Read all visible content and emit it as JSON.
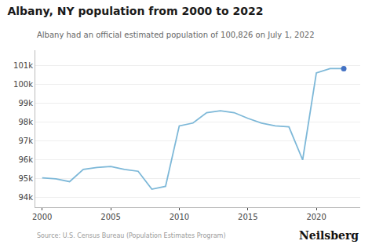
{
  "chart_data": {
    "type": "line",
    "title": "Albany, NY population from 2000 to 2022",
    "subtitle": "Albany had an official estimated population of 100,826 on July 1, 2022",
    "annotations": [
      "Source: U.S. Census Bureau (Population Estimates Program)",
      "Neilsberg"
    ],
    "x": [
      2000,
      2001,
      2002,
      2003,
      2004,
      2005,
      2006,
      2007,
      2008,
      2009,
      2010,
      2011,
      2012,
      2013,
      2014,
      2015,
      2016,
      2017,
      2018,
      2019,
      2020,
      2021,
      2022
    ],
    "series": [
      {
        "type": "line",
        "color": "#7db8d8",
        "values": [
          95050,
          95000,
          94850,
          95500,
          95600,
          95650,
          95500,
          95400,
          94450,
          94600,
          97800,
          97950,
          98500,
          98600,
          98500,
          98200,
          97950,
          97800,
          97750,
          96000,
          100600,
          100826,
          100826
        ]
      },
      {
        "type": "scatter",
        "color": "#4472c4",
        "x": [
          2022
        ],
        "values": [
          100826
        ]
      }
    ],
    "xlim": [
      1999.5,
      2023.2
    ],
    "ylim": [
      93500,
      101800
    ],
    "xticks": [
      2000,
      2005,
      2010,
      2015,
      2020
    ],
    "yticks": [
      {
        "value": 94000,
        "label": "94k"
      },
      {
        "value": 95000,
        "label": "95k"
      },
      {
        "value": 96000,
        "label": "96k"
      },
      {
        "value": 97000,
        "label": "97k"
      },
      {
        "value": 98000,
        "label": "98k"
      },
      {
        "value": 99000,
        "label": "99k"
      },
      {
        "value": 100000,
        "label": "100k"
      },
      {
        "value": 101000,
        "label": "101k"
      }
    ],
    "grid": "y"
  }
}
